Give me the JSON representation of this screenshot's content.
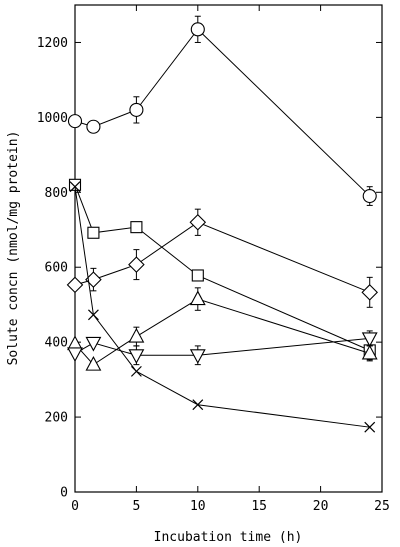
{
  "chart_data": {
    "type": "line",
    "xlabel": "Incubation time (h)",
    "ylabel": "Solute concn (nmol/mg protein)",
    "xlim": [
      0,
      25
    ],
    "ylim": [
      0,
      1300
    ],
    "x_ticks": [
      "0",
      "5",
      "10",
      "15",
      "20",
      "25"
    ],
    "y_ticks": [
      "0",
      "200",
      "400",
      "600",
      "800",
      "1000",
      "1200"
    ],
    "grid": false,
    "series": [
      {
        "marker": "circle",
        "points": [
          {
            "x": 0,
            "y": 990,
            "err": 0
          },
          {
            "x": 1.5,
            "y": 975,
            "err": 0
          },
          {
            "x": 5,
            "y": 1020,
            "err": 35
          },
          {
            "x": 10,
            "y": 1235,
            "err": 35
          },
          {
            "x": 24,
            "y": 790,
            "err": 25
          }
        ]
      },
      {
        "marker": "square",
        "points": [
          {
            "x": 0,
            "y": 820,
            "err": 0
          },
          {
            "x": 1.5,
            "y": 692,
            "err": 0
          },
          {
            "x": 5,
            "y": 707,
            "err": 0
          },
          {
            "x": 10,
            "y": 578,
            "err": 0
          },
          {
            "x": 24,
            "y": 378,
            "err": 25
          }
        ]
      },
      {
        "marker": "diamond",
        "points": [
          {
            "x": 0,
            "y": 553,
            "err": 0
          },
          {
            "x": 1.5,
            "y": 567,
            "err": 30
          },
          {
            "x": 5,
            "y": 607,
            "err": 40
          },
          {
            "x": 10,
            "y": 720,
            "err": 35
          },
          {
            "x": 24,
            "y": 533,
            "err": 40
          }
        ]
      },
      {
        "marker": "triangle-up",
        "points": [
          {
            "x": 0,
            "y": 395,
            "err": 0
          },
          {
            "x": 1.5,
            "y": 340,
            "err": 0
          },
          {
            "x": 5,
            "y": 415,
            "err": 25
          },
          {
            "x": 10,
            "y": 515,
            "err": 30
          },
          {
            "x": 24,
            "y": 370,
            "err": 20
          }
        ]
      },
      {
        "marker": "triangle-down",
        "points": [
          {
            "x": 0,
            "y": 370,
            "err": 0
          },
          {
            "x": 1.5,
            "y": 398,
            "err": 0
          },
          {
            "x": 5,
            "y": 365,
            "err": 25
          },
          {
            "x": 10,
            "y": 365,
            "err": 25
          },
          {
            "x": 24,
            "y": 410,
            "err": 20
          }
        ]
      },
      {
        "marker": "cross",
        "points": [
          {
            "x": 0,
            "y": 815,
            "err": 0
          },
          {
            "x": 1.5,
            "y": 473,
            "err": 0
          },
          {
            "x": 5,
            "y": 322,
            "err": 0
          },
          {
            "x": 10,
            "y": 233,
            "err": 0
          },
          {
            "x": 24,
            "y": 173,
            "err": 0
          }
        ]
      }
    ],
    "colors": {
      "ink": "#000000",
      "background": "#ffffff"
    }
  }
}
